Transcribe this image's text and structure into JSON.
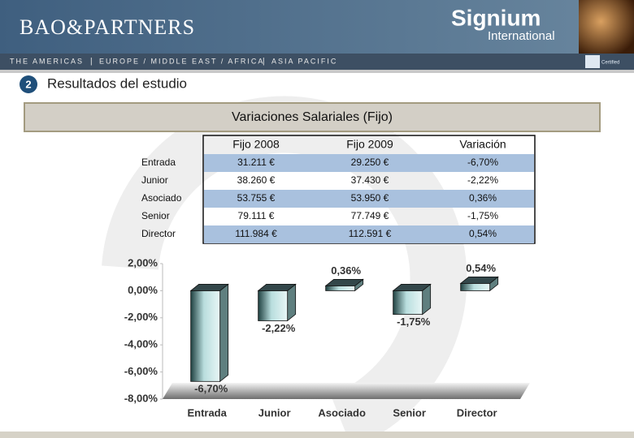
{
  "header": {
    "brand": "BAO&PARTNERS",
    "partner": "Signium",
    "partner_sub": "International",
    "badge": "Certified",
    "nav": [
      "THE AMERICAS",
      "EUROPE / MIDDLE EAST / AFRICA",
      "ASIA PACIFIC"
    ]
  },
  "section": {
    "number": "2",
    "title": "Resultados del estudio"
  },
  "box_title": "Variaciones Salariales (Fijo)",
  "table": {
    "columns": [
      "Fijo 2008",
      "Fijo 2009",
      "Variación"
    ],
    "rows": [
      {
        "label": "Entrada",
        "cells": [
          "31.211 €",
          "29.250 €",
          "-6,70%"
        ]
      },
      {
        "label": "Junior",
        "cells": [
          "38.260 €",
          "37.430 €",
          "-2,22%"
        ]
      },
      {
        "label": "Asociado",
        "cells": [
          "53.755 €",
          "53.950 €",
          "0,36%"
        ]
      },
      {
        "label": "Senior",
        "cells": [
          "79.111 €",
          "77.749 €",
          "-1,75%"
        ]
      },
      {
        "label": "Director",
        "cells": [
          "111.984 €",
          "112.591 €",
          "0,54%"
        ]
      }
    ]
  },
  "chart_data": {
    "type": "bar3d",
    "categories": [
      "Entrada",
      "Junior",
      "Asociado",
      "Senior",
      "Director"
    ],
    "values": [
      -6.7,
      -2.22,
      0.36,
      -1.75,
      0.54
    ],
    "value_labels": [
      "-6,70%",
      "-2,22%",
      "0,36%",
      "-1,75%",
      "0,54%"
    ],
    "color": "#b9dede",
    "ylim": [
      -8,
      2
    ],
    "yticks": [
      {
        "value": -8,
        "label": "-8,00%"
      },
      {
        "value": -6,
        "label": "-6,00%"
      },
      {
        "value": -4,
        "label": "-4,00%"
      },
      {
        "value": -2,
        "label": "-2,00%"
      },
      {
        "value": 0,
        "label": "0,00%"
      },
      {
        "value": 2,
        "label": "2,00%"
      }
    ]
  }
}
